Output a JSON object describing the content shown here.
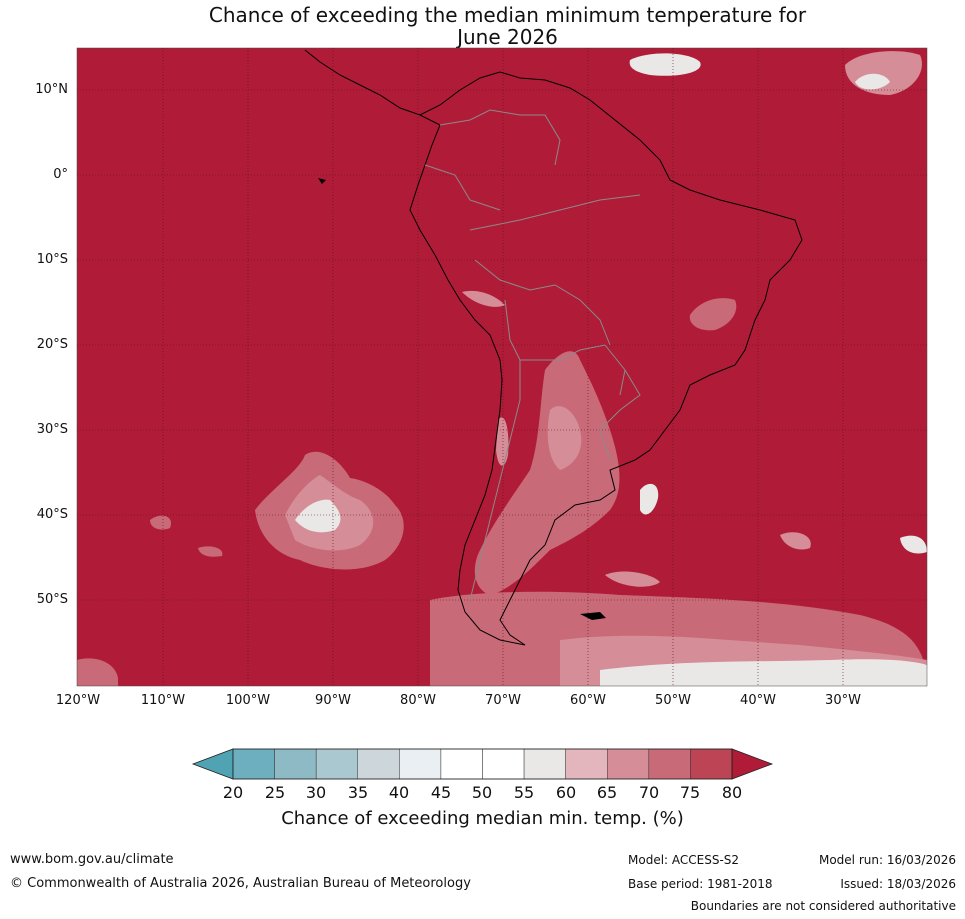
{
  "title_line1": "Chance of exceeding the median minimum temperature for",
  "title_line2": "June 2026",
  "lat_labels": [
    "10°N",
    "0°",
    "10°S",
    "20°S",
    "30°S",
    "40°S",
    "50°S"
  ],
  "lon_labels": [
    "120°W",
    "110°W",
    "100°W",
    "90°W",
    "80°W",
    "70°W",
    "60°W",
    "50°W",
    "40°W",
    "30°W"
  ],
  "colorbar": {
    "ticks": [
      "20",
      "25",
      "30",
      "35",
      "40",
      "45",
      "50",
      "55",
      "60",
      "65",
      "70",
      "75",
      "80"
    ],
    "colors": [
      "#4fa3b2",
      "#6daebf",
      "#8ebac6",
      "#aac8cf",
      "#cdd6db",
      "#e9eff2",
      "#ffffff",
      "#ffffff",
      "#eae8e6",
      "#e2b6bc",
      "#d58d98",
      "#c96a78",
      "#bd4454",
      "#b01c38"
    ],
    "label": "Chance of exceeding median min. temp. (%)"
  },
  "footer": {
    "url": "www.bom.gov.au/climate",
    "copyright": "© Commonwealth of Australia 2026, Australian Bureau of Meteorology",
    "model": "Model: ACCESS-S2",
    "base_period": "Base period: 1981-2018",
    "model_run": "Model run: 16/03/2026",
    "issued": "Issued: 18/03/2026",
    "disclaimer": "Boundaries are not considered authoritative"
  }
}
